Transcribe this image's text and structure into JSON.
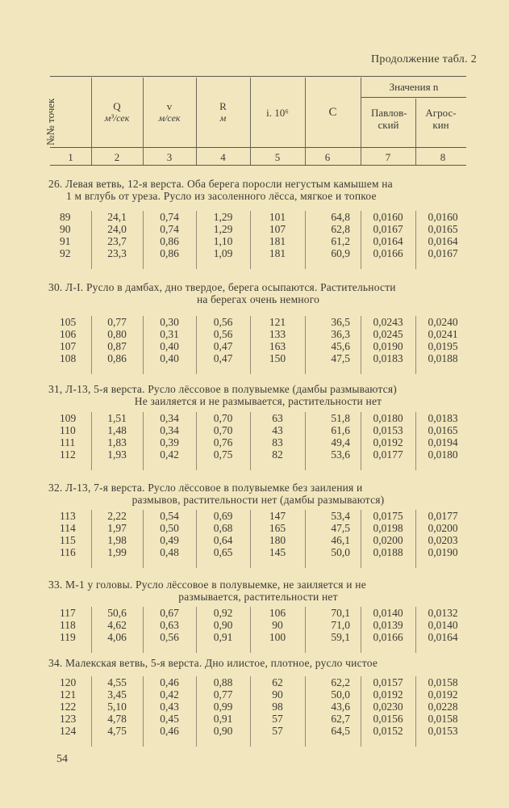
{
  "caption": "Продолжение табл. 2",
  "header": {
    "col1": "№№ точек",
    "col2": {
      "symbol": "Q",
      "unit": "м³/сек"
    },
    "col3": {
      "symbol": "v",
      "unit": "м/сек"
    },
    "col4": {
      "symbol": "R",
      "unit": "м"
    },
    "col5": "i. 10⁶",
    "col6": "C",
    "group": "Значения n",
    "col7": "Павлов-ский",
    "col8": "Агрос-кин",
    "numbers": [
      "1",
      "2",
      "3",
      "4",
      "5",
      "6",
      "7",
      "8"
    ]
  },
  "sections": [
    {
      "title1": "26. Левая ветвь, 12-я верста. Оба берега поросли негустым камышем на",
      "title2": "1 м вглубь от уреза. Русло из засоленного лёсса, мягкое и топкое",
      "rows": [
        [
          "89",
          "24,1",
          "0,74",
          "1,29",
          "101",
          "64,8",
          "0,0160",
          "0,0160"
        ],
        [
          "90",
          "24,0",
          "0,74",
          "1,29",
          "107",
          "62,8",
          "0,0167",
          "0,0165"
        ],
        [
          "91",
          "23,7",
          "0,86",
          "1,10",
          "181",
          "61,2",
          "0,0164",
          "0,0164"
        ],
        [
          "92",
          "23,3",
          "0,86",
          "1,09",
          "181",
          "60,9",
          "0,0166",
          "0,0167"
        ]
      ]
    },
    {
      "title1": "30. Л-I. Русло в дамбах, дно твердое, берега осыпаются. Растительности",
      "title2": "на берегах очень немного",
      "rows": [
        [
          "105",
          "0,77",
          "0,30",
          "0,56",
          "121",
          "36,5",
          "0,0243",
          "0,0240"
        ],
        [
          "106",
          "0,80",
          "0,31",
          "0,56",
          "133",
          "36,3",
          "0,0245",
          "0,0241"
        ],
        [
          "107",
          "0,87",
          "0,40",
          "0,47",
          "163",
          "45,6",
          "0,0190",
          "0,0195"
        ],
        [
          "108",
          "0,86",
          "0,40",
          "0,47",
          "150",
          "47,5",
          "0,0183",
          "0,0188"
        ]
      ]
    },
    {
      "title1": "31, Л-13, 5-я верста. Русло лёссовое в полувыемке (дамбы размываются)",
      "title2": "Не заиляется и не размывается, растительности нет",
      "rows": [
        [
          "109",
          "1,51",
          "0,34",
          "0,70",
          "63",
          "51,8",
          "0,0180",
          "0,0183"
        ],
        [
          "110",
          "1,48",
          "0,34",
          "0,70",
          "43",
          "61,6",
          "0,0153",
          "0,0165"
        ],
        [
          "111",
          "1,83",
          "0,39",
          "0,76",
          "83",
          "49,4",
          "0,0192",
          "0,0194"
        ],
        [
          "112",
          "1,93",
          "0,42",
          "0,75",
          "82",
          "53,6",
          "0,0177",
          "0,0180"
        ]
      ]
    },
    {
      "title1": "32. Л-13, 7-я верста. Русло лёссовое в полувыемке без заиления и",
      "title2": "размывов, растительности нет (дамбы размываются)",
      "rows": [
        [
          "113",
          "2,22",
          "0,54",
          "0,69",
          "147",
          "53,4",
          "0,0175",
          "0,0177"
        ],
        [
          "114",
          "1,97",
          "0,50",
          "0,68",
          "165",
          "47,5",
          "0,0198",
          "0,0200"
        ],
        [
          "115",
          "1,98",
          "0,49",
          "0,64",
          "180",
          "46,1",
          "0,0200",
          "0,0203"
        ],
        [
          "116",
          "1,99",
          "0,48",
          "0,65",
          "145",
          "50,0",
          "0,0188",
          "0,0190"
        ]
      ]
    },
    {
      "title1": "33. М-1 у головы. Русло лёссовое в полувыемке, не заиляется и не",
      "title2": "размывается, растительности нет",
      "rows": [
        [
          "117",
          "50,6",
          "0,67",
          "0,92",
          "106",
          "70,1",
          "0,0140",
          "0,0132"
        ],
        [
          "118",
          "4,62",
          "0,63",
          "0,90",
          "90",
          "71,0",
          "0,0139",
          "0,0140"
        ],
        [
          "119",
          "4,06",
          "0,56",
          "0,91",
          "100",
          "59,1",
          "0,0166",
          "0,0164"
        ]
      ]
    },
    {
      "title1": "34. Малекская ветвь, 5-я верста. Дно илистое, плотное, русло чистое",
      "title2": "",
      "rows": [
        [
          "120",
          "4,55",
          "0,46",
          "0,88",
          "62",
          "62,2",
          "0,0157",
          "0,0158"
        ],
        [
          "121",
          "3,45",
          "0,42",
          "0,77",
          "90",
          "50,0",
          "0,0192",
          "0,0192"
        ],
        [
          "122",
          "5,10",
          "0,43",
          "0,99",
          "98",
          "43,6",
          "0,0230",
          "0,0228"
        ],
        [
          "123",
          "4,78",
          "0,45",
          "0,91",
          "57",
          "62,7",
          "0,0156",
          "0,0158"
        ],
        [
          "124",
          "4,75",
          "0,46",
          "0,90",
          "57",
          "64,5",
          "0,0152",
          "0,0153"
        ]
      ]
    }
  ],
  "page_number": "54"
}
